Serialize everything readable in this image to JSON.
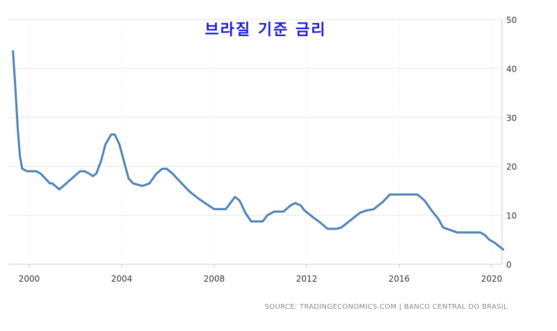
{
  "chart_data": {
    "type": "line",
    "title": "브라질 기준 금리",
    "source": "SOURCE: TRADINGECONOMICS.COM | BANCO CENTRAL DO BRASIL",
    "xlabel": "",
    "ylabel": "",
    "xlim": [
      1999.3,
      2020.5
    ],
    "ylim": [
      0,
      50
    ],
    "x_ticks": [
      2000,
      2004,
      2008,
      2012,
      2016,
      2020
    ],
    "y_ticks": [
      0,
      10,
      20,
      30,
      40,
      50
    ],
    "grid": true,
    "y_axis_position": "right",
    "line_color": "#4a80b6",
    "title_color": "#1a1adc",
    "series": [
      {
        "x": [
          1999.3,
          1999.4,
          1999.5,
          1999.6,
          1999.7,
          1999.9,
          2000.3,
          2000.5,
          2000.6,
          2000.9,
          2001.0,
          2001.3,
          2001.6,
          2002.2,
          2002.4,
          2002.6,
          2002.75,
          2002.9,
          2003.1,
          2003.3,
          2003.55,
          2003.7,
          2003.9,
          2004.1,
          2004.3,
          2004.5,
          2004.9,
          2005.2,
          2005.5,
          2005.75,
          2005.95,
          2006.2,
          2006.5,
          2006.9,
          2007.3,
          2007.6,
          2008.0,
          2008.3,
          2008.5,
          2008.7,
          2008.9,
          2009.1,
          2009.35,
          2009.6,
          2010.1,
          2010.3,
          2010.6,
          2011.0,
          2011.3,
          2011.5,
          2011.75,
          2011.9,
          2012.3,
          2012.6,
          2012.9,
          2013.3,
          2013.5,
          2013.9,
          2014.3,
          2014.6,
          2014.9,
          2015.3,
          2015.6,
          2016.0,
          2016.8,
          2017.1,
          2017.4,
          2017.7,
          2017.9,
          2018.2,
          2018.5,
          2019.2,
          2019.5,
          2019.7,
          2019.9,
          2020.1,
          2020.3,
          2020.5
        ],
        "values": [
          43.5,
          36.0,
          28.0,
          22.0,
          19.5,
          19.0,
          19.0,
          18.5,
          18.0,
          16.5,
          16.5,
          15.3,
          16.5,
          19.0,
          19.0,
          18.5,
          18.0,
          18.5,
          21.0,
          24.5,
          26.5,
          26.5,
          24.5,
          21.0,
          17.5,
          16.5,
          16.0,
          16.5,
          18.5,
          19.5,
          19.5,
          18.5,
          17.0,
          15.0,
          13.5,
          12.5,
          11.25,
          11.25,
          11.25,
          12.5,
          13.75,
          13.0,
          10.5,
          8.75,
          8.75,
          10.0,
          10.75,
          10.75,
          12.0,
          12.5,
          12.0,
          11.0,
          9.5,
          8.5,
          7.25,
          7.25,
          7.5,
          9.0,
          10.5,
          11.0,
          11.25,
          12.75,
          14.25,
          14.25,
          14.25,
          13.0,
          11.0,
          9.25,
          7.5,
          7.0,
          6.5,
          6.5,
          6.5,
          6.0,
          5.0,
          4.5,
          3.75,
          3.0
        ]
      }
    ]
  }
}
